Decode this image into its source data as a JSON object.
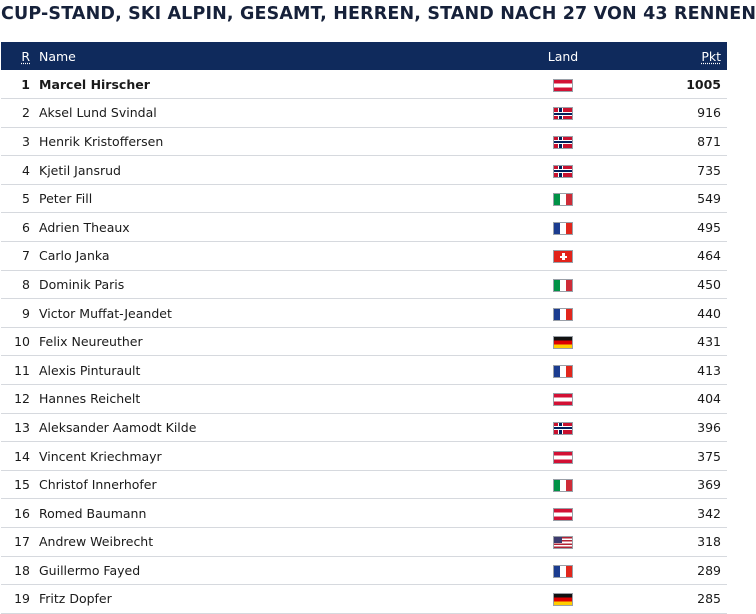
{
  "title": "CUP-STAND, SKI ALPIN, GESAMT, HERREN, STAND NACH 27 VON 43 RENNEN",
  "columns": {
    "rank": "R",
    "name": "Name",
    "land": "Land",
    "points": "Pkt"
  },
  "rows": [
    {
      "rank": "1",
      "name": "Marcel Hirscher",
      "flag": "aut",
      "flag_icon": "austria-flag-icon",
      "points": "1005"
    },
    {
      "rank": "2",
      "name": "Aksel Lund Svindal",
      "flag": "nor",
      "flag_icon": "norway-flag-icon",
      "points": "916"
    },
    {
      "rank": "3",
      "name": "Henrik Kristoffersen",
      "flag": "nor",
      "flag_icon": "norway-flag-icon",
      "points": "871"
    },
    {
      "rank": "4",
      "name": "Kjetil Jansrud",
      "flag": "nor",
      "flag_icon": "norway-flag-icon",
      "points": "735"
    },
    {
      "rank": "5",
      "name": "Peter Fill",
      "flag": "ita",
      "flag_icon": "italy-flag-icon",
      "points": "549"
    },
    {
      "rank": "6",
      "name": "Adrien Theaux",
      "flag": "fra",
      "flag_icon": "france-flag-icon",
      "points": "495"
    },
    {
      "rank": "7",
      "name": "Carlo Janka",
      "flag": "sui",
      "flag_icon": "switzerland-flag-icon",
      "points": "464"
    },
    {
      "rank": "8",
      "name": "Dominik Paris",
      "flag": "ita",
      "flag_icon": "italy-flag-icon",
      "points": "450"
    },
    {
      "rank": "9",
      "name": "Victor Muffat-Jeandet",
      "flag": "fra",
      "flag_icon": "france-flag-icon",
      "points": "440"
    },
    {
      "rank": "10",
      "name": "Felix Neureuther",
      "flag": "ger",
      "flag_icon": "germany-flag-icon",
      "points": "431"
    },
    {
      "rank": "11",
      "name": "Alexis Pinturault",
      "flag": "fra",
      "flag_icon": "france-flag-icon",
      "points": "413"
    },
    {
      "rank": "12",
      "name": "Hannes Reichelt",
      "flag": "aut",
      "flag_icon": "austria-flag-icon",
      "points": "404"
    },
    {
      "rank": "13",
      "name": "Aleksander Aamodt Kilde",
      "flag": "nor",
      "flag_icon": "norway-flag-icon",
      "points": "396"
    },
    {
      "rank": "14",
      "name": "Vincent Kriechmayr",
      "flag": "aut",
      "flag_icon": "austria-flag-icon",
      "points": "375"
    },
    {
      "rank": "15",
      "name": "Christof Innerhofer",
      "flag": "ita",
      "flag_icon": "italy-flag-icon",
      "points": "369"
    },
    {
      "rank": "16",
      "name": "Romed Baumann",
      "flag": "aut",
      "flag_icon": "austria-flag-icon",
      "points": "342"
    },
    {
      "rank": "17",
      "name": "Andrew Weibrecht",
      "flag": "usa",
      "flag_icon": "usa-flag-icon",
      "points": "318"
    },
    {
      "rank": "18",
      "name": "Guillermo Fayed",
      "flag": "fra",
      "flag_icon": "france-flag-icon",
      "points": "289"
    },
    {
      "rank": "19",
      "name": "Fritz Dopfer",
      "flag": "ger",
      "flag_icon": "germany-flag-icon",
      "points": "285"
    }
  ],
  "colors": {
    "header_bg": "#0f2a5c",
    "header_text": "#ffffff",
    "title": "#16213a",
    "row_border": "#d6d9de"
  }
}
